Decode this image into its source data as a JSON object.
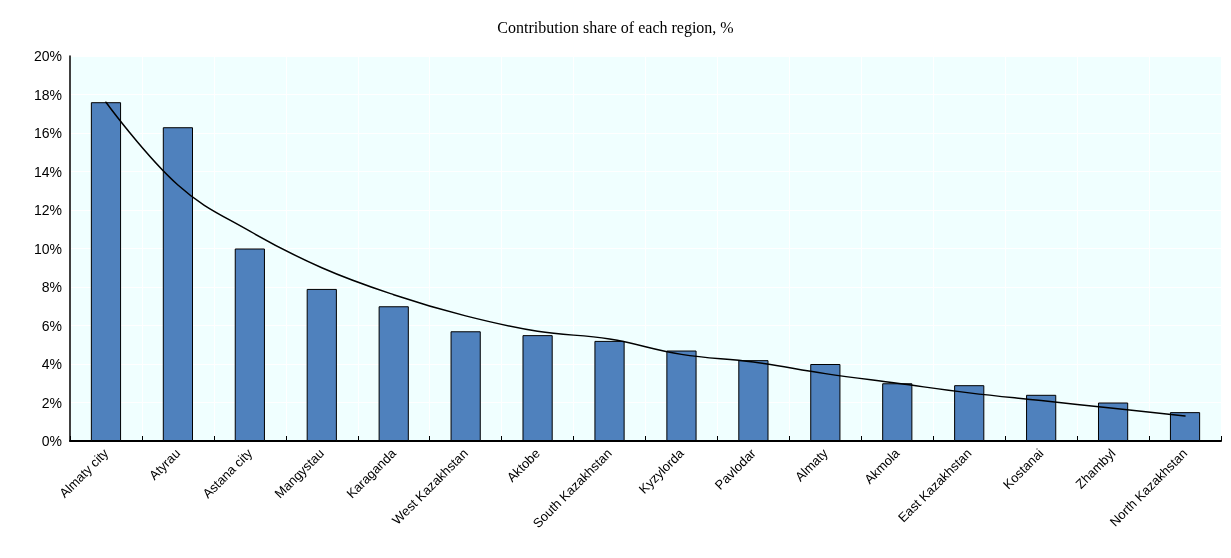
{
  "chart_data": {
    "type": "bar",
    "title": "Contribution share of each region, %",
    "categories": [
      "Almaty city",
      "Atyrau",
      "Astana city",
      "Mangystau",
      "Karaganda",
      "West Kazakhstan",
      "Aktobe",
      "South Kazakhstan",
      "Kyzylorda",
      "Pavlodar",
      "Almaty",
      "Akmola",
      "East Kazakhstan",
      "Kostanai",
      "Zhambyl",
      "North Kazakhstan"
    ],
    "series": [
      {
        "color": "#4f81bd",
        "values": [
          17.6,
          16.3,
          10.0,
          7.9,
          7.0,
          5.7,
          5.5,
          5.2,
          4.7,
          4.2,
          4.0,
          3.0,
          2.9,
          2.4,
          2.0,
          1.5
        ]
      },
      {
        "type": "line",
        "color": "#000000",
        "values": [
          17.6,
          13.3,
          10.9,
          9.0,
          7.6,
          6.5,
          5.7,
          5.3,
          4.5,
          4.1,
          3.5,
          3.0,
          2.5,
          2.1,
          1.7,
          1.3
        ]
      }
    ],
    "ylim": [
      0,
      20
    ],
    "yticks": [
      {
        "value": 0,
        "label": "0%"
      },
      {
        "value": 2,
        "label": "2%"
      },
      {
        "value": 4,
        "label": "4%"
      },
      {
        "value": 6,
        "label": "6%"
      },
      {
        "value": 8,
        "label": "8%"
      },
      {
        "value": 10,
        "label": "10%"
      },
      {
        "value": 12,
        "label": "12%"
      },
      {
        "value": 14,
        "label": "14%"
      },
      {
        "value": 16,
        "label": "16%"
      },
      {
        "value": 18,
        "label": "18%"
      },
      {
        "value": 20,
        "label": "20%"
      }
    ],
    "grid": true,
    "marker": "none",
    "line_style": "solid"
  }
}
